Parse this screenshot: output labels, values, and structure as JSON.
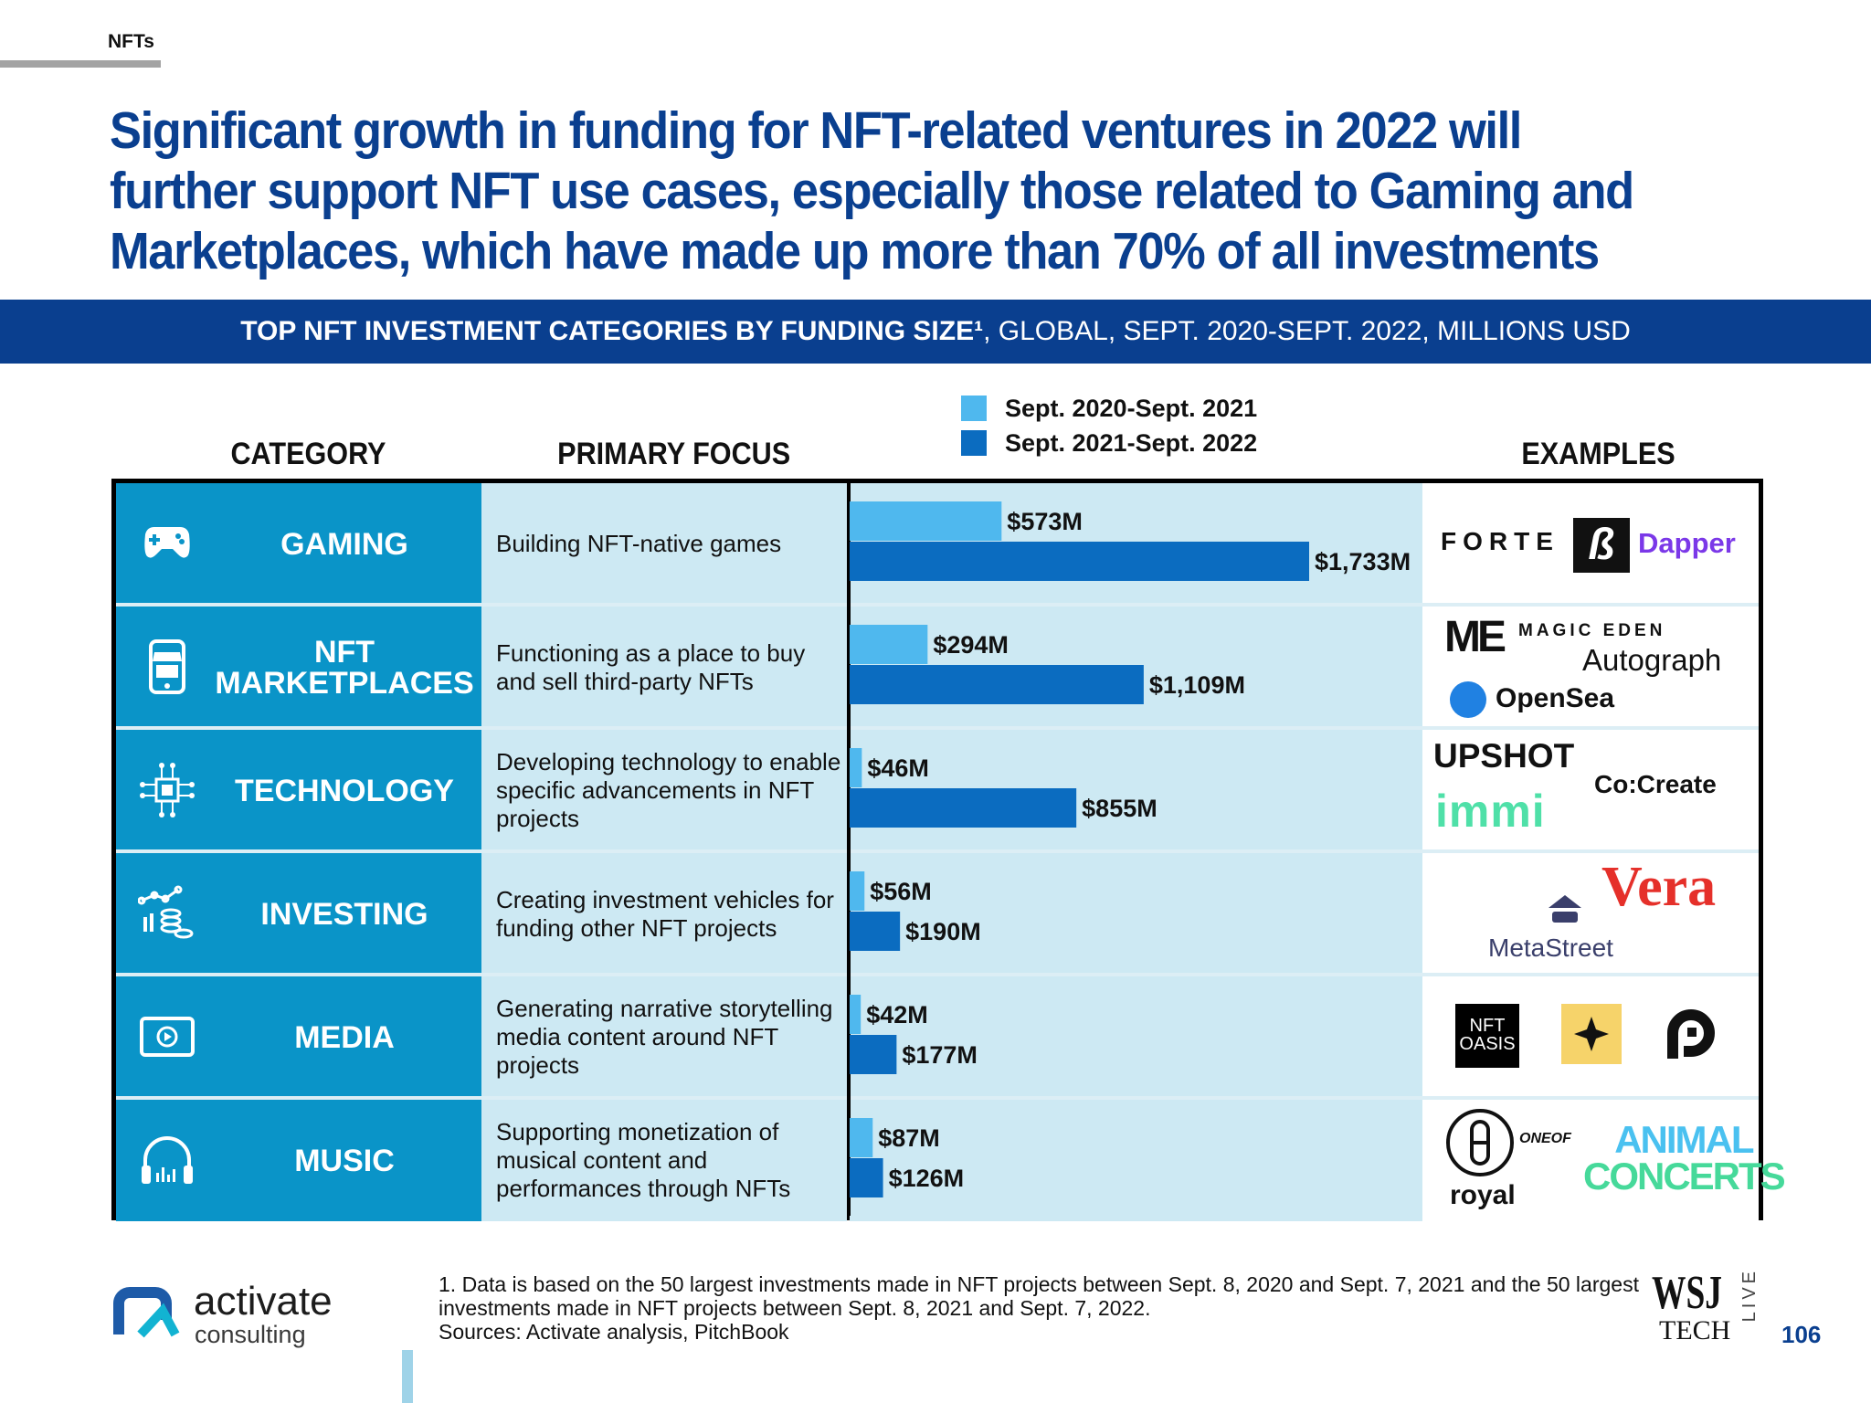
{
  "section_tag": "NFTs",
  "headline": "Significant growth in funding for NFT-related ventures in 2022 will further support NFT use cases, especially those related to Gaming and Marketplaces, which have made up more than 70% of all investments",
  "banner": {
    "bold_part": "TOP NFT INVESTMENT CATEGORIES BY FUNDING SIZE¹",
    "rest": ", GLOBAL, SEPT. 2020-SEPT. 2022, MILLIONS USD"
  },
  "columns": {
    "category": "CATEGORY",
    "focus": "PRIMARY FOCUS",
    "examples": "EXAMPLES"
  },
  "colors": {
    "navy": "#0a3f8f",
    "category_fill": "#0a94c8",
    "focus_fill": "#cde9f3",
    "series_2021": "#4fb8ee",
    "series_2022": "#0b6cc0"
  },
  "chart_data": {
    "type": "bar",
    "orientation": "horizontal",
    "title": "TOP NFT INVESTMENT CATEGORIES BY FUNDING SIZE¹, GLOBAL, SEPT. 2020-SEPT. 2022, MILLIONS USD",
    "categories": [
      "GAMING",
      "NFT MARKETPLACES",
      "TECHNOLOGY",
      "INVESTING",
      "MEDIA",
      "MUSIC"
    ],
    "series": [
      {
        "name": "Sept. 2020-Sept. 2021",
        "color": "#4fb8ee",
        "values": [
          573,
          294,
          46,
          56,
          42,
          87
        ],
        "labels": [
          "$573M",
          "$294M",
          "$46M",
          "$56M",
          "$42M",
          "$87M"
        ]
      },
      {
        "name": "Sept. 2021-Sept. 2022",
        "color": "#0b6cc0",
        "values": [
          1733,
          1109,
          855,
          190,
          177,
          126
        ],
        "labels": [
          "$1,733M",
          "$1,109M",
          "$855M",
          "$190M",
          "$177M",
          "$126M"
        ]
      }
    ],
    "xlim": [
      0,
      1733
    ],
    "legend": "top"
  },
  "rows": [
    {
      "category": "GAMING",
      "icon": "gamepad-icon",
      "focus": "Building NFT-native games",
      "examples": [
        "FORTE",
        "Dapper Labs",
        "Dapper"
      ]
    },
    {
      "category": "NFT MARKETPLACES",
      "icon": "storefront-phone-icon",
      "focus": "Functioning as a place to buy and sell third-party NFTs",
      "examples": [
        "MAGIC EDEN",
        "Autograph",
        "OpenSea"
      ]
    },
    {
      "category": "TECHNOLOGY",
      "icon": "circuit-chip-icon",
      "focus": "Developing technology to enable specific advancements in NFT projects",
      "examples": [
        "UPSHOT",
        "immi",
        "Co:Create"
      ]
    },
    {
      "category": "INVESTING",
      "icon": "growth-coins-icon",
      "focus": "Creating investment vehicles for funding other NFT projects",
      "examples": [
        "M",
        "MetaStreet",
        "Vera"
      ]
    },
    {
      "category": "MEDIA",
      "icon": "play-screen-icon",
      "focus": "Generating narrative storytelling media content around NFT projects",
      "examples": [
        "NFT OASIS",
        "star",
        "P"
      ]
    },
    {
      "category": "MUSIC",
      "icon": "headphones-icon",
      "focus": "Supporting monetization of musical content and performances through NFTs",
      "examples": [
        "ONE OF",
        "royal",
        "ANIMAL CONCERTS"
      ]
    }
  ],
  "example_logos": {
    "forte": "FORTE",
    "dapper": "Dapper",
    "magic_eden": "MAGIC EDEN",
    "autograph": "Autograph",
    "opensea": "OpenSea",
    "upshot": "UPSHOT",
    "immi": "immi",
    "cocreate": "Co:Create",
    "vera": "Vera",
    "metastreet": "MetaStreet",
    "nft_oasis_1": "NFT",
    "nft_oasis_2": "OASIS",
    "oneof": "ONEOF",
    "royal": "royal",
    "animal_1": "ANIMAL",
    "animal_2": "CONCERTS"
  },
  "footnote": "1. Data is based on the 50 largest investments made in NFT projects between Sept. 8, 2020 and Sept. 7, 2021 and the 50 largest investments made in NFT projects between Sept. 8, 2021 and Sept. 7, 2022.",
  "sources": "Sources: Activate analysis, PitchBook",
  "brand": {
    "name": "activate",
    "sub": "consulting"
  },
  "wsj": {
    "wsj": "WSJ",
    "tech": "TECH",
    "live": "LIVE"
  },
  "page_number": "106"
}
